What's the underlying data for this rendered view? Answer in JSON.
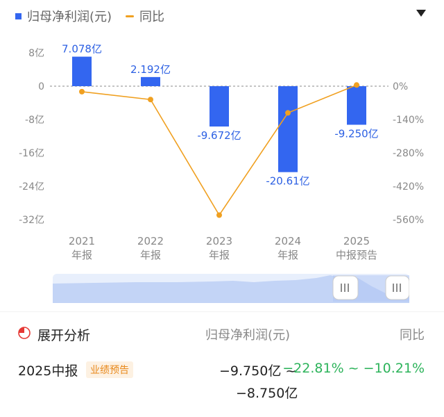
{
  "legend": {
    "bar_label": "归母净利润(元)",
    "line_label": "同比"
  },
  "colors": {
    "bar": "#3366f0",
    "line": "#f0a020",
    "positive": "#2cb35a",
    "badge_bg": "#fdf1e2",
    "badge_fg": "#e8891c"
  },
  "chart_data": {
    "type": "bar",
    "categories": [
      [
        "2021",
        "年报"
      ],
      [
        "2022",
        "年报"
      ],
      [
        "2023",
        "年报"
      ],
      [
        "2024",
        "年报"
      ],
      [
        "2025",
        "中报预告"
      ]
    ],
    "series": [
      {
        "values": [
          7.078,
          2.192,
          -9.672,
          -20.61,
          -9.25
        ],
        "labels": [
          "7.078亿",
          "2.192亿",
          "-9.672亿",
          "-20.61亿",
          "-9.250亿"
        ],
        "axis": "left"
      },
      {
        "type": "line",
        "values": [
          -23,
          -56,
          -541,
          -112,
          5
        ],
        "axis": "right"
      }
    ],
    "left_axis": {
      "ticks": [
        8,
        0,
        -8,
        -16,
        -24,
        -32
      ],
      "tick_labels": [
        "8亿",
        "0",
        "-8亿",
        "-16亿",
        "-24亿",
        "-32亿"
      ]
    },
    "right_axis": {
      "ticks": [
        0,
        -140,
        -280,
        -420,
        -560
      ],
      "tick_labels": [
        "0%",
        "-140%",
        "-280%",
        "-420%",
        "-560%"
      ]
    },
    "zero_line": "dashed"
  },
  "analysis": {
    "title": "展开分析",
    "col1": "归母净利润(元)",
    "col2": "同比"
  },
  "forecast": {
    "period": "2025中报",
    "badge": "业绩预告",
    "profit_low": "−9.750亿",
    "tilde": "~",
    "profit_high": "−8.750亿",
    "yoy": "−22.81% ~ −10.21%"
  }
}
